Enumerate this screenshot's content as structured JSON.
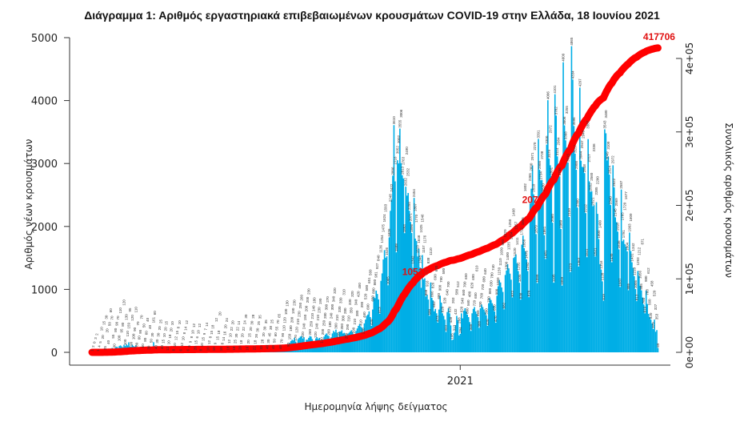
{
  "chart_data": {
    "type": "bar",
    "title": "Διάγραμμα 1: Αριθμός εργαστηριακά επιβεβαιωμένων κρουσμάτων COVID-19 στην Ελλάδα, 18 Ιουνίου 2021",
    "xlabel": "Ημερομηνία λήψης δείγματος",
    "ylabel": "Αριθμός νέων κρουσμάτων",
    "y2label": "Συνολικός αριθμός κρουσμάτων",
    "ylim": [
      0,
      5000
    ],
    "y2lim": [
      0,
      400000
    ],
    "yticks": [
      "0",
      "1000",
      "2000",
      "3000",
      "4000",
      "5000"
    ],
    "y2ticks": [
      "0e+00",
      "1e+05",
      "2e+05",
      "3e+05",
      "4e+05"
    ],
    "xticks": [
      "2021"
    ],
    "x_start": "2020-02-25",
    "x_tick_date": "2021-01-01",
    "grid": false,
    "colors": {
      "bars": "#00aee6",
      "cumulative": "#ff0000",
      "annotation": "#e01010"
    },
    "series": [
      {
        "type": "bar",
        "values": [
          1,
          2,
          0,
          3,
          2,
          1,
          4,
          5,
          10,
          20,
          15,
          25,
          30,
          20,
          40,
          50,
          60,
          70,
          55,
          60,
          80,
          90,
          70,
          100,
          110,
          95,
          80,
          120,
          100,
          130,
          110,
          159,
          95,
          90,
          120,
          100,
          90,
          110,
          80,
          70,
          60,
          90,
          70,
          60,
          50,
          80,
          60,
          40,
          30,
          40,
          50,
          30,
          161,
          60,
          40,
          30,
          30,
          20,
          25,
          40,
          15,
          10,
          20,
          15,
          12,
          10,
          18,
          20,
          10,
          8,
          10,
          12,
          15,
          8,
          10,
          6,
          12,
          10,
          8,
          14,
          12,
          6,
          5,
          9,
          8,
          10,
          12,
          20,
          15,
          6,
          10,
          12,
          8,
          10,
          15,
          9,
          7,
          14,
          10,
          12,
          8,
          15,
          18,
          10,
          9,
          12,
          15,
          18,
          20,
          10,
          8,
          14,
          16,
          20,
          24,
          18,
          12,
          10,
          22,
          20,
          18,
          25,
          30,
          22,
          14,
          26,
          18,
          20,
          22,
          24,
          30,
          16,
          20,
          25,
          20,
          30,
          28,
          22,
          18,
          26,
          30,
          25,
          35,
          32,
          28,
          20,
          30,
          35,
          40,
          30,
          45,
          38,
          25,
          40,
          50,
          60,
          55,
          70,
          65,
          40,
          70,
          90,
          110,
          120,
          100,
          130,
          80,
          150,
          180,
          200,
          190,
          230,
          170,
          120,
          210,
          230,
          250,
          260,
          220,
          240,
          150,
          200,
          200,
          230,
          260,
          250,
          210,
          140,
          180,
          220,
          240,
          210,
          230,
          190,
          130,
          200,
          250,
          280,
          300,
          270,
          260,
          180,
          240,
          300,
          340,
          320,
          360,
          310,
          210,
          330,
          330,
          350,
          300,
          310,
          280,
          200,
          290,
          310,
          330,
          350,
          320,
          290,
          210,
          340,
          380,
          420,
          450,
          410,
          390,
          280,
          460,
          520,
          580,
          600,
          651,
          560,
          420,
          680,
          880,
          860,
          981,
          927,
          840,
          613,
          1136,
          1254,
          1475,
          1624,
          1503,
          1526,
          1065,
          1826,
          2248,
          2422,
          2806,
          3610,
          2716,
          1588,
          3052,
          3002,
          3555,
          3006,
          2813,
          2763,
          1893,
          2632,
          2490,
          2532,
          2250,
          2071,
          1896,
          1342,
          2454,
          1807,
          1770,
          1523,
          1646,
          1348,
          1025,
          1546,
          1157,
          1176,
          888,
          916,
          838,
          580,
          1110,
          866,
          826,
          652,
          690,
          620,
          473,
          680,
          900,
          790,
          620,
          580,
          520,
          323,
          640,
          700,
          620,
          428,
          195,
          203,
          313,
          432,
          580,
          512,
          268,
          294,
          620,
          540,
          660,
          700,
          650,
          600,
          560,
          480,
          340,
          620,
          690,
          720,
          650,
          610,
          560,
          388,
          700,
          760,
          720,
          680,
          640,
          590,
          420,
          780,
          860,
          830,
          780,
          740,
          650,
          470,
          900,
          1050,
          1150,
          1110,
          1030,
          960,
          682,
          1229,
          1300,
          1400,
          1335,
          1250,
          1154,
          872,
          1498,
          1520,
          1557,
          1411,
          1292,
          1105,
          838,
          1711,
          1855,
          1656,
          1602,
          1476,
          1292,
          876,
          2365,
          2600,
          2971,
          2510,
          2270,
          1879,
          1099,
          3391,
          2900,
          2734,
          2738,
          2530,
          1861,
          1481,
          3300,
          4006,
          3079,
          2972,
          2801,
          2060,
          1105,
          4101,
          3762,
          3114,
          2984,
          2796,
          1960,
          1059,
          4609,
          3606,
          3368,
          3255,
          3015,
          2150,
          1273,
          4865,
          4334,
          3596,
          3157,
          2900,
          2300,
          1363,
          4207,
          3044,
          2947,
          2940,
          2848,
          2212,
          1511,
          3387,
          2717,
          2552,
          2560,
          2321,
          2336,
          1521,
          2385,
          2200,
          1800,
          1400,
          1316,
          1128,
          819,
          3543,
          3480,
          3049,
          3109,
          2824,
          2340,
          1430,
          2972,
          2622,
          2145,
          2069,
          1918,
          1636,
          1037,
          2587,
          1765,
          1791,
          1720,
          1677,
          1604,
          986,
          1903,
          1609,
          1431,
          1342,
          1210,
          1005,
          813,
          1293,
          1212,
          1056,
          985,
          871,
          760,
          619,
          980,
          768,
          612,
          560,
          520,
          458,
          370,
          520,
          327,
          353,
          69
        ]
      },
      {
        "type": "line",
        "cumulative_of": "bar"
      }
    ],
    "annotations": [
      {
        "text": "10519",
        "date": "2020-12-01"
      },
      {
        "text": "2077",
        "date": "2021-03-10"
      },
      {
        "text": "417706",
        "date": "2021-06-18"
      }
    ]
  }
}
